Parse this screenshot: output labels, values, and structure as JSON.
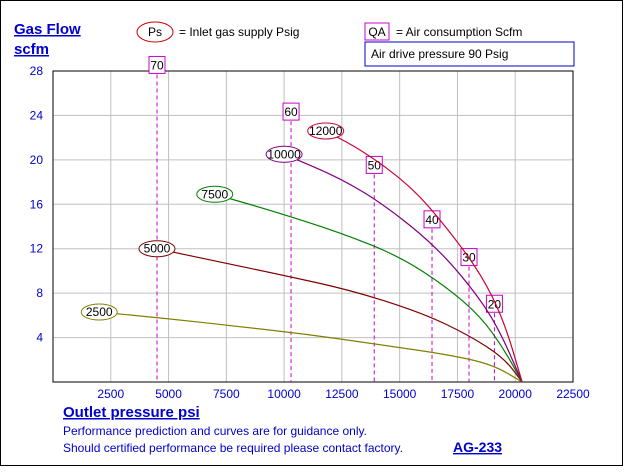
{
  "chart_data": {
    "type": "line",
    "ylabel_line1": "Gas Flow",
    "ylabel_line2": "scfm",
    "xlabel": "Outlet pressure   psi",
    "xlim": [
      0,
      22500
    ],
    "ylim": [
      0,
      28
    ],
    "x_ticks": [
      "2500",
      "5000",
      "7500",
      "10000",
      "12500",
      "15000",
      "17500",
      "20000",
      "22500"
    ],
    "y_ticks": [
      "4",
      "8",
      "12",
      "16",
      "20",
      "24",
      "28"
    ],
    "grid": true,
    "legend": {
      "ps_symbol": "Ps",
      "ps_text": "= Inlet gas supply  Psig",
      "qa_symbol": "QA",
      "qa_text": "= Air consumption  Scfm",
      "air_drive": "Air drive pressure  90 Psig"
    },
    "series": [
      {
        "name": "2500",
        "color": "#808000",
        "x": [
          2000,
          5000,
          8000,
          11000,
          14000,
          17000,
          19000,
          20300
        ],
        "y": [
          6.3,
          5.7,
          5.0,
          4.3,
          3.4,
          2.5,
          1.6,
          0
        ]
      },
      {
        "name": "5000",
        "color": "#800000",
        "x": [
          4500,
          7000,
          10000,
          13000,
          16000,
          18000,
          19500,
          20300
        ],
        "y": [
          12.0,
          10.9,
          9.6,
          8.2,
          6.2,
          4.2,
          2.2,
          0
        ]
      },
      {
        "name": "7500",
        "color": "#008000",
        "x": [
          7000,
          9500,
          12500,
          15000,
          17000,
          18500,
          19500,
          20300
        ],
        "y": [
          16.9,
          15.4,
          13.4,
          11.3,
          8.6,
          5.9,
          3.0,
          0
        ]
      },
      {
        "name": "10000",
        "color": "#800080",
        "x": [
          10000,
          12500,
          14500,
          16500,
          18000,
          19200,
          20300
        ],
        "y": [
          20.5,
          18.3,
          15.7,
          12.3,
          8.8,
          5.2,
          0
        ]
      },
      {
        "name": "12000",
        "color": "#cc0033",
        "x": [
          11800,
          13500,
          15500,
          17000,
          18500,
          19500,
          20300
        ],
        "y": [
          22.6,
          20.7,
          17.6,
          14.0,
          9.8,
          5.6,
          0
        ]
      }
    ],
    "air_consumption": [
      {
        "label": "70",
        "x": 4500,
        "y_top": 28.5
      },
      {
        "label": "60",
        "x": 10300,
        "y_top": 24.3
      },
      {
        "label": "50",
        "x": 13900,
        "y_top": 19.5
      },
      {
        "label": "40",
        "x": 16400,
        "y_top": 14.6
      },
      {
        "label": "30",
        "x": 18000,
        "y_top": 11.2
      },
      {
        "label": "20",
        "x": 19100,
        "y_top": 7.0
      }
    ],
    "notes": [
      "Performance prediction and curves are for guidance only.",
      "Should certified performance be required please contact factory."
    ],
    "code": "AG-233"
  }
}
